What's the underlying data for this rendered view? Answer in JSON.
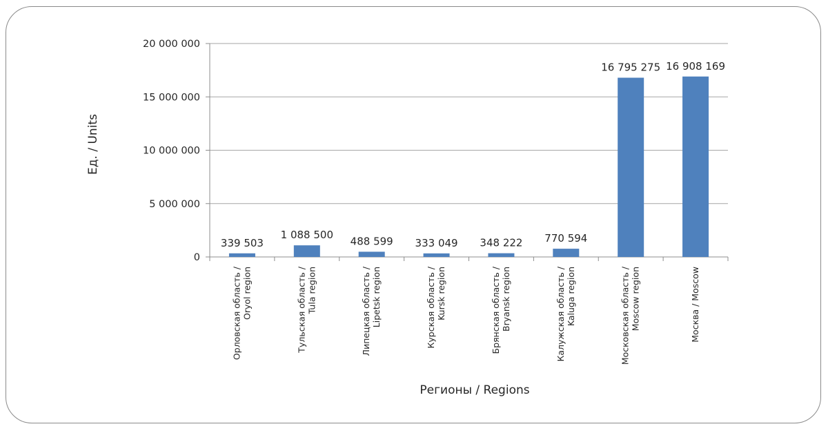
{
  "chart_data": {
    "type": "bar",
    "xlabel": "Регионы / Regions",
    "ylabel": "Ед. / Units",
    "ylim": [
      0,
      20000000
    ],
    "yticks": [
      0,
      5000000,
      10000000,
      15000000,
      20000000
    ],
    "ytick_labels": [
      "0",
      "5 000 000",
      "10 000 000",
      "15 000 000",
      "20 000 000"
    ],
    "grid": true,
    "bar_color": "#4f81bd",
    "categories": [
      [
        "Орловская область /",
        "Oryol region"
      ],
      [
        "Тульская область /",
        "Tula region"
      ],
      [
        "Липецкая область /",
        "Lipetsk region"
      ],
      [
        "Курская область /",
        "Kursk region"
      ],
      [
        "Брянская область /",
        "Bryansk region"
      ],
      [
        "Калужская область /",
        "Kaluga region"
      ],
      [
        "Московская область /",
        "Moscow region"
      ],
      [
        "Москва / Moscow"
      ]
    ],
    "values": [
      339503,
      1088500,
      488599,
      333049,
      348222,
      770594,
      16795275,
      16908169
    ],
    "value_labels": [
      "339 503",
      "1 088 500",
      "488 599",
      "333 049",
      "348 222",
      "770 594",
      "16 795 275",
      "16 908 169"
    ]
  }
}
